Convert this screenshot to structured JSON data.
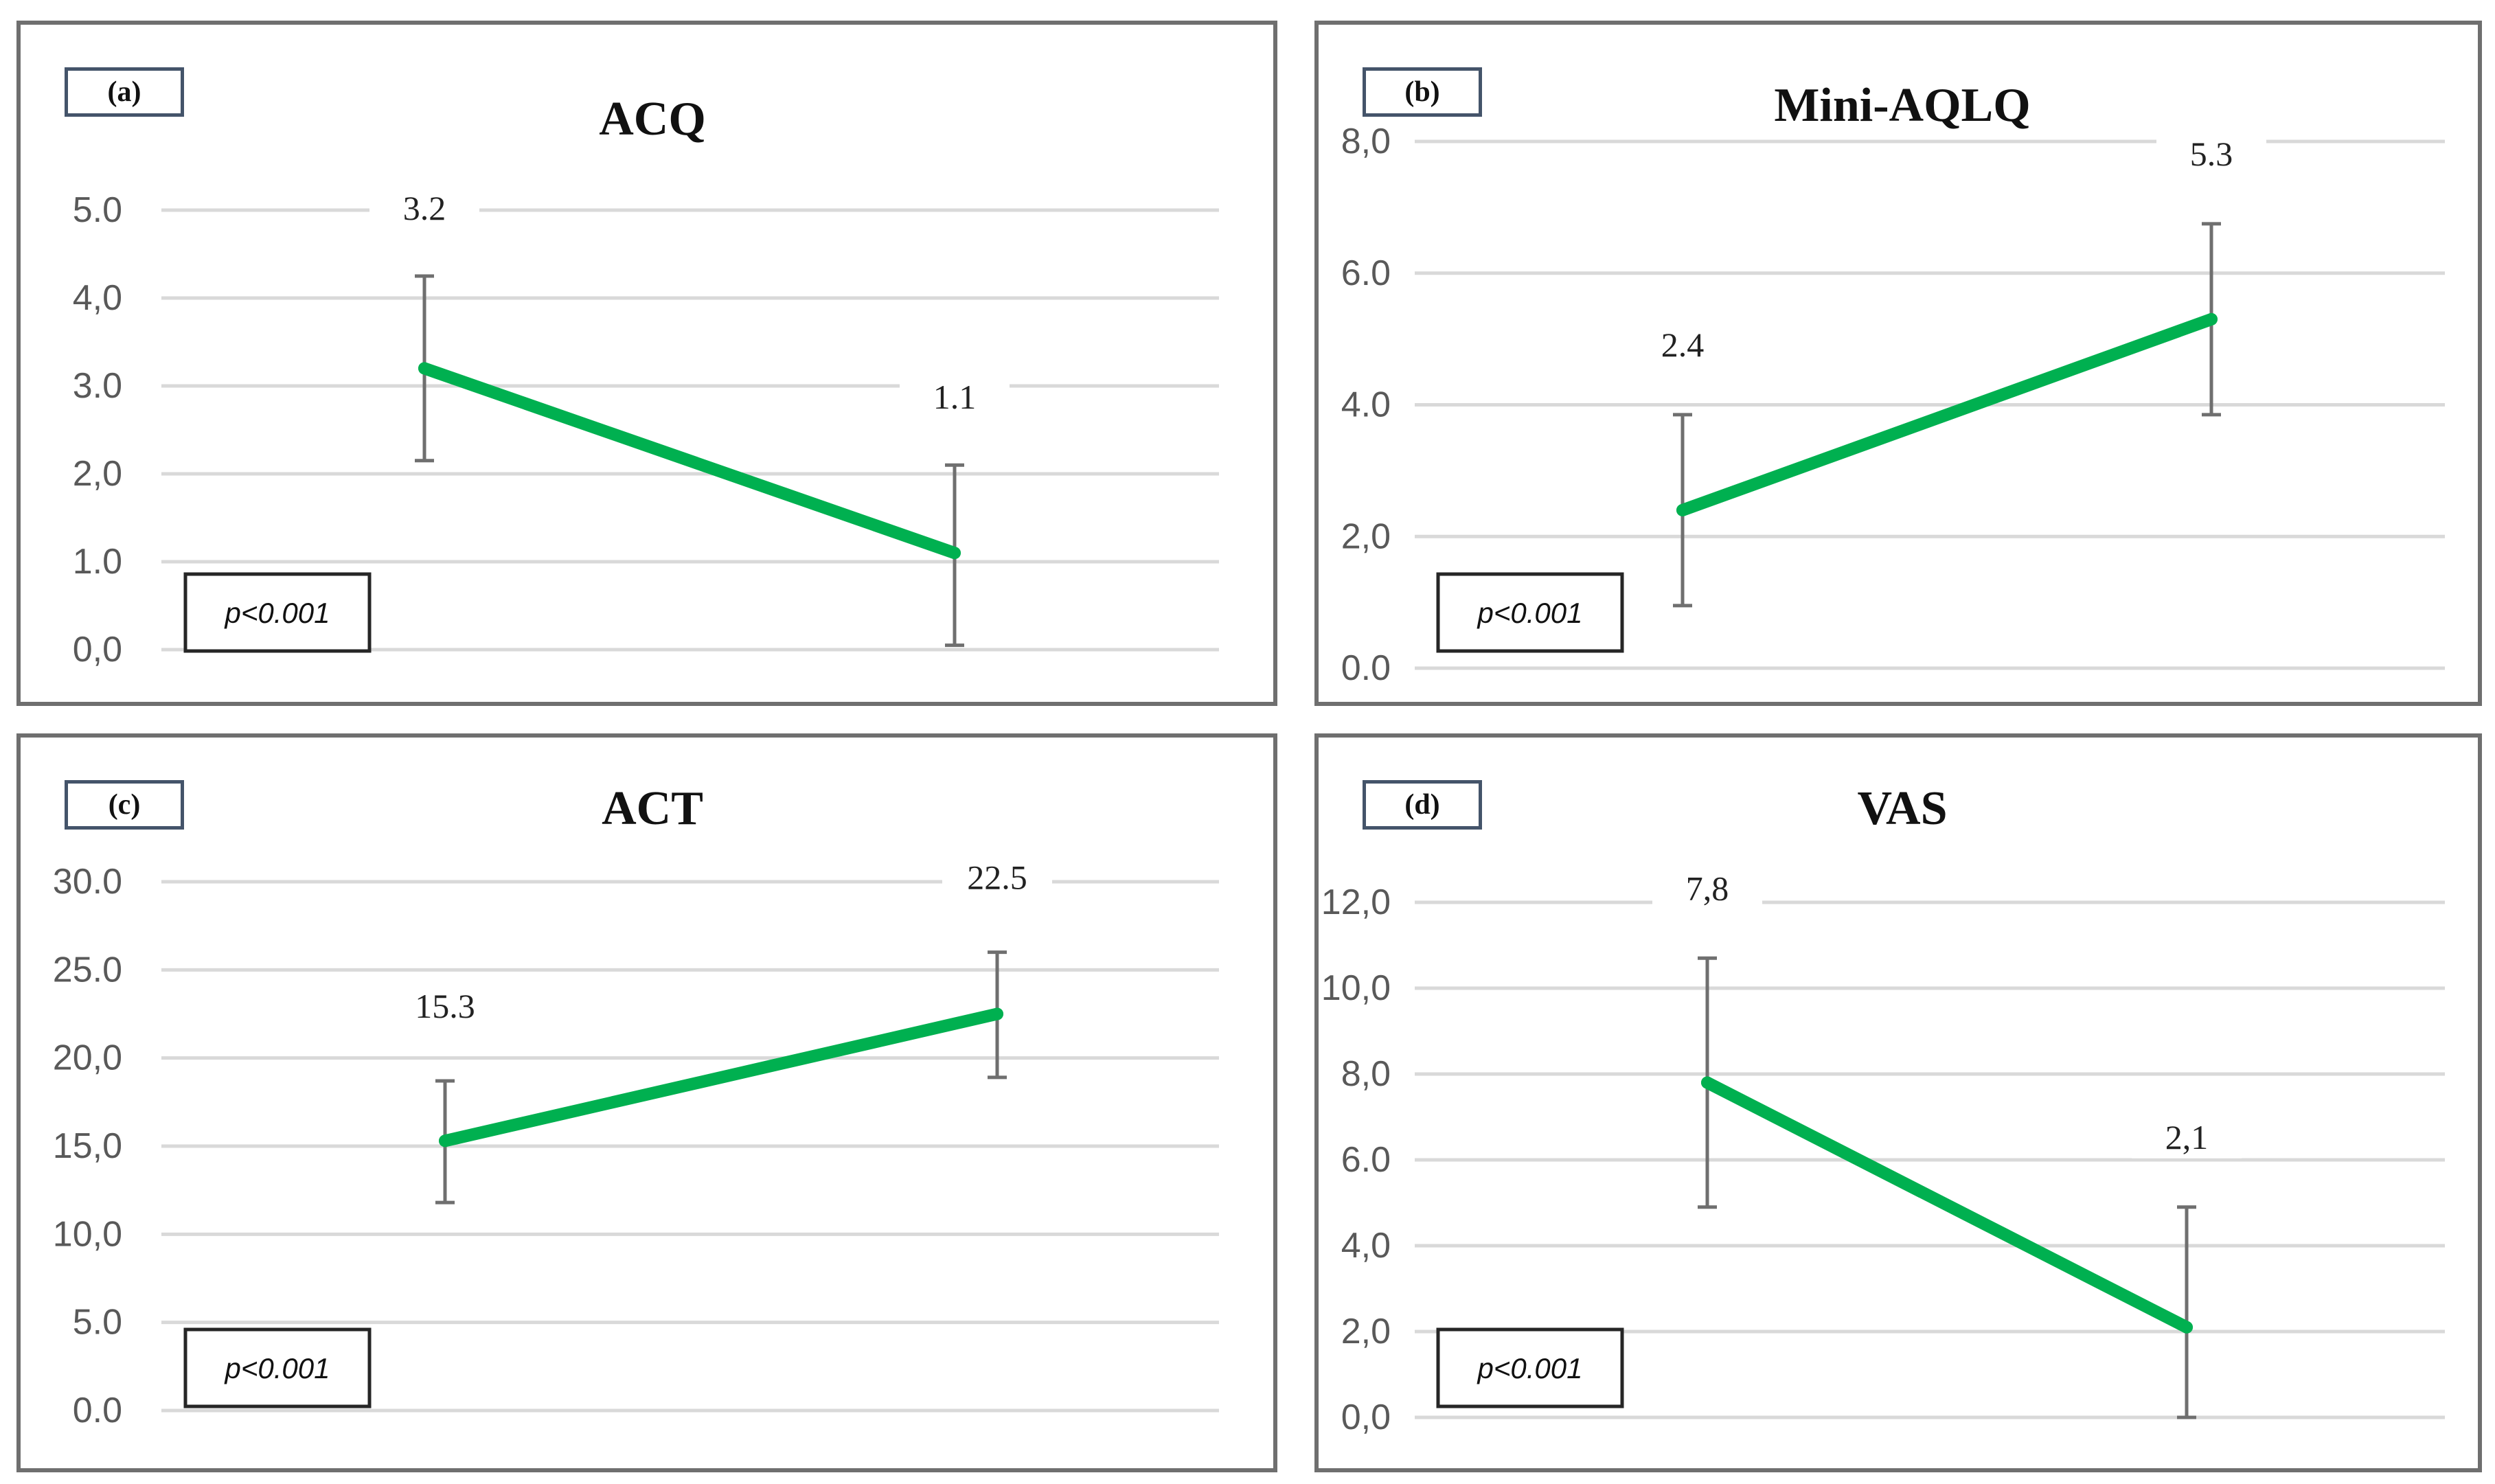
{
  "panels": [
    {
      "label": "(a)",
      "p_value": "p<0.001"
    },
    {
      "label": "(b)",
      "p_value": "p<0.001"
    },
    {
      "label": "(c)",
      "p_value": "p<0.001"
    },
    {
      "label": "(d)",
      "p_value": "p<0.001"
    }
  ],
  "chart_data": [
    {
      "type": "line",
      "title": "ACQ",
      "xlabel": "",
      "ylabel": "",
      "ylim": [
        0,
        5
      ],
      "yticks": [
        "0,0",
        "1.0",
        "2,0",
        "3.0",
        "4,0",
        "5.0"
      ],
      "values": [
        3.2,
        1.1
      ],
      "data_labels": [
        "3.2",
        "1.1"
      ],
      "error_low": [
        2.15,
        0.05
      ],
      "error_high": [
        4.25,
        2.1
      ],
      "grid": true,
      "color": "#00b050"
    },
    {
      "type": "line",
      "title": "Mini-AQLQ",
      "xlabel": "",
      "ylabel": "",
      "ylim": [
        0,
        8
      ],
      "yticks": [
        "0.0",
        "2,0",
        "4.0",
        "6.0",
        "8,0"
      ],
      "values": [
        2.4,
        5.3
      ],
      "data_labels": [
        "2.4",
        "5.3"
      ],
      "error_low": [
        0.95,
        3.85
      ],
      "error_high": [
        3.85,
        6.75
      ],
      "grid": true,
      "color": "#00b050"
    },
    {
      "type": "line",
      "title": "ACT",
      "xlabel": "",
      "ylabel": "",
      "ylim": [
        0,
        30
      ],
      "yticks": [
        "0.0",
        "5.0",
        "10,0",
        "15,0",
        "20,0",
        "25.0",
        "30.0"
      ],
      "values": [
        15.3,
        22.5
      ],
      "data_labels": [
        "15.3",
        "22.5"
      ],
      "error_low": [
        11.8,
        18.9
      ],
      "error_high": [
        18.7,
        26.0
      ],
      "grid": true,
      "color": "#00b050"
    },
    {
      "type": "line",
      "title": "VAS",
      "xlabel": "",
      "ylabel": "",
      "ylim": [
        0,
        12
      ],
      "yticks": [
        "0,0",
        "2,0",
        "4,0",
        "6.0",
        "8,0",
        "10,0",
        "12,0"
      ],
      "values": [
        7.8,
        2.1
      ],
      "data_labels": [
        "7,8",
        "2,1"
      ],
      "error_low": [
        4.9,
        0.0
      ],
      "error_high": [
        10.7,
        4.9
      ],
      "grid": true,
      "color": "#00b050"
    }
  ]
}
